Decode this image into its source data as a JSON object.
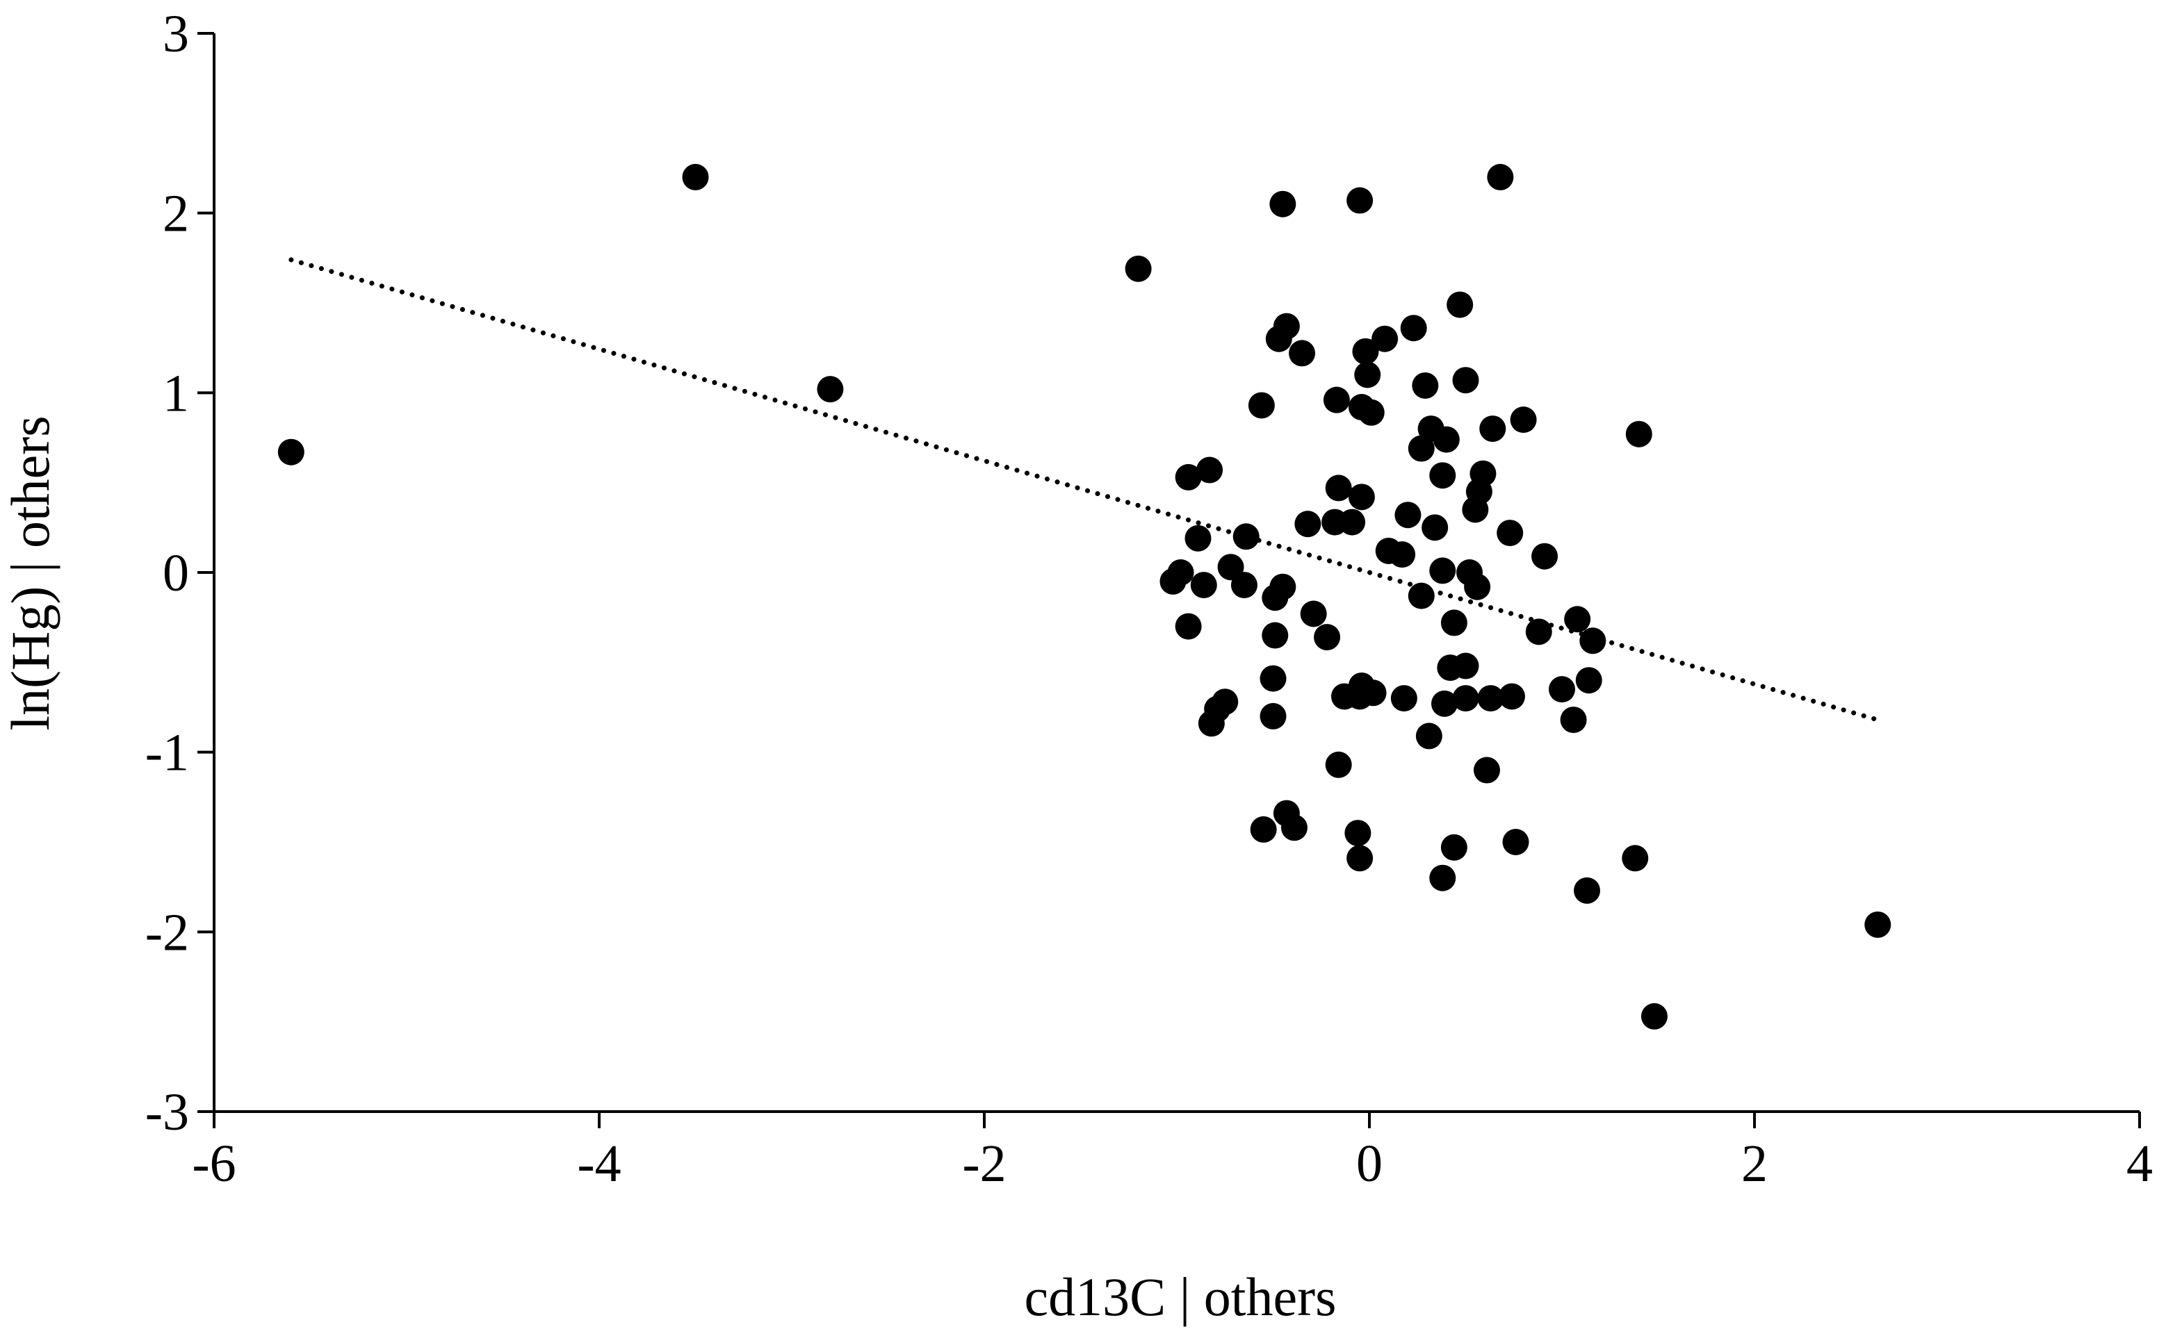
{
  "chart_data": {
    "type": "scatter",
    "title": "",
    "xlabel": "cd13C | others",
    "ylabel": "ln(Hg) | others",
    "xlim": [
      -6,
      4
    ],
    "ylim": [
      -3,
      3
    ],
    "xticks": [
      -6,
      -4,
      -2,
      0,
      2,
      4
    ],
    "yticks": [
      -3,
      -2,
      -1,
      0,
      1,
      2,
      3
    ],
    "xtick_labels": [
      "-6",
      "-4",
      "-2",
      "0",
      "2",
      "4"
    ],
    "ytick_labels": [
      "-3",
      "-2",
      "-1",
      "0",
      "1",
      "2",
      "3"
    ],
    "grid": false,
    "legend": "none",
    "colors": {
      "points": "#000000",
      "trendline": "#000000",
      "axes": "#000000"
    },
    "points": [
      [
        -5.6,
        0.67
      ],
      [
        -3.5,
        2.2
      ],
      [
        -2.8,
        1.02
      ],
      [
        -1.2,
        1.69
      ],
      [
        -0.45,
        2.05
      ],
      [
        -0.05,
        2.07
      ],
      [
        0.68,
        2.2
      ],
      [
        0.47,
        1.49
      ],
      [
        0.23,
        1.36
      ],
      [
        0.08,
        1.3
      ],
      [
        -0.47,
        1.3
      ],
      [
        -0.43,
        1.37
      ],
      [
        -0.35,
        1.22
      ],
      [
        -0.02,
        1.23
      ],
      [
        -0.01,
        1.1
      ],
      [
        0.29,
        1.04
      ],
      [
        0.5,
        1.07
      ],
      [
        -0.56,
        0.93
      ],
      [
        -0.17,
        0.96
      ],
      [
        -0.04,
        0.92
      ],
      [
        0.01,
        0.89
      ],
      [
        0.32,
        0.8
      ],
      [
        0.64,
        0.8
      ],
      [
        0.8,
        0.85
      ],
      [
        1.4,
        0.77
      ],
      [
        0.27,
        0.69
      ],
      [
        0.4,
        0.74
      ],
      [
        -0.94,
        0.53
      ],
      [
        -0.83,
        0.57
      ],
      [
        0.38,
        0.54
      ],
      [
        0.59,
        0.55
      ],
      [
        0.57,
        0.45
      ],
      [
        -0.16,
        0.47
      ],
      [
        -0.04,
        0.42
      ],
      [
        0.55,
        0.35
      ],
      [
        0.2,
        0.32
      ],
      [
        -0.32,
        0.27
      ],
      [
        -0.18,
        0.28
      ],
      [
        -0.09,
        0.28
      ],
      [
        0.34,
        0.25
      ],
      [
        0.73,
        0.22
      ],
      [
        -0.89,
        0.19
      ],
      [
        -0.64,
        0.2
      ],
      [
        0.1,
        0.12
      ],
      [
        0.17,
        0.1
      ],
      [
        0.91,
        0.09
      ],
      [
        -0.72,
        0.03
      ],
      [
        -0.98,
        0.0
      ],
      [
        0.38,
        0.01
      ],
      [
        0.52,
        0.0
      ],
      [
        -1.02,
        -0.05
      ],
      [
        -0.86,
        -0.07
      ],
      [
        -0.65,
        -0.07
      ],
      [
        -0.45,
        -0.08
      ],
      [
        0.56,
        -0.08
      ],
      [
        -0.49,
        -0.14
      ],
      [
        0.27,
        -0.13
      ],
      [
        -0.29,
        -0.23
      ],
      [
        0.44,
        -0.28
      ],
      [
        -0.94,
        -0.3
      ],
      [
        0.88,
        -0.33
      ],
      [
        1.08,
        -0.26
      ],
      [
        -0.49,
        -0.35
      ],
      [
        -0.22,
        -0.36
      ],
      [
        1.16,
        -0.38
      ],
      [
        0.42,
        -0.53
      ],
      [
        0.5,
        -0.52
      ],
      [
        -0.5,
        -0.59
      ],
      [
        1.14,
        -0.6
      ],
      [
        -0.04,
        -0.63
      ],
      [
        1.0,
        -0.65
      ],
      [
        -0.13,
        -0.69
      ],
      [
        -0.05,
        -0.69
      ],
      [
        0.02,
        -0.67
      ],
      [
        0.18,
        -0.7
      ],
      [
        0.5,
        -0.7
      ],
      [
        0.63,
        -0.7
      ],
      [
        0.74,
        -0.69
      ],
      [
        -0.75,
        -0.72
      ],
      [
        -0.79,
        -0.76
      ],
      [
        0.39,
        -0.73
      ],
      [
        -0.5,
        -0.8
      ],
      [
        -0.82,
        -0.84
      ],
      [
        1.06,
        -0.82
      ],
      [
        0.31,
        -0.91
      ],
      [
        -0.16,
        -1.07
      ],
      [
        0.61,
        -1.1
      ],
      [
        -0.43,
        -1.34
      ],
      [
        -0.55,
        -1.43
      ],
      [
        -0.39,
        -1.42
      ],
      [
        -0.06,
        -1.45
      ],
      [
        0.44,
        -1.53
      ],
      [
        0.76,
        -1.5
      ],
      [
        -0.05,
        -1.59
      ],
      [
        1.38,
        -1.59
      ],
      [
        0.38,
        -1.7
      ],
      [
        1.13,
        -1.77
      ],
      [
        2.64,
        -1.96
      ],
      [
        1.48,
        -2.47
      ]
    ],
    "trendline": {
      "style": "dotted",
      "x": [
        -5.6,
        2.64
      ],
      "y": [
        1.74,
        -0.82
      ]
    }
  }
}
